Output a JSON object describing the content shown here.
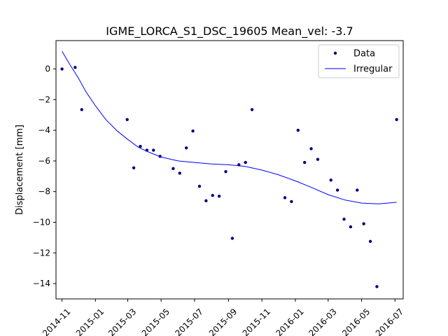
{
  "chart_data": {
    "type": "scatter",
    "title": "IGME_LORCA_S1_DSC_19605     Mean_vel: -3.7",
    "xlabel": "",
    "ylabel": "Displacement [mm]",
    "x_axis_type": "date",
    "xlim": [
      "2014-10-21",
      "2016-07-16"
    ],
    "ylim": [
      -15.0,
      1.85
    ],
    "x_ticks": [
      "2014-11-01",
      "2015-01-01",
      "2015-03-01",
      "2015-05-01",
      "2015-07-01",
      "2015-09-01",
      "2015-11-01",
      "2016-01-01",
      "2016-03-01",
      "2016-05-01",
      "2016-07-01"
    ],
    "x_tick_labels": [
      "2014-11",
      "2015-01",
      "2015-03",
      "2015-05",
      "2015-07",
      "2015-09",
      "2015-11",
      "2016-01",
      "2016-03",
      "2016-05",
      "2016-07"
    ],
    "y_ticks": [
      0,
      -2,
      -4,
      -6,
      -8,
      -10,
      -12,
      -14
    ],
    "y_tick_labels": [
      "0",
      "−2",
      "−4",
      "−6",
      "−8",
      "−10",
      "−12",
      "−14"
    ],
    "grid": false,
    "legend_position": "top-right",
    "series": [
      {
        "name": "Data",
        "kind": "points",
        "color": "#00007f",
        "points": [
          {
            "x": "2014-11-01",
            "y": 0.0
          },
          {
            "x": "2014-11-25",
            "y": 0.1
          },
          {
            "x": "2014-12-07",
            "y": -2.65
          },
          {
            "x": "2015-02-28",
            "y": -3.3
          },
          {
            "x": "2015-03-12",
            "y": -6.45
          },
          {
            "x": "2015-03-24",
            "y": -5.05
          },
          {
            "x": "2015-04-05",
            "y": -5.3
          },
          {
            "x": "2015-04-17",
            "y": -5.3
          },
          {
            "x": "2015-04-29",
            "y": -5.7
          },
          {
            "x": "2015-05-23",
            "y": -6.5
          },
          {
            "x": "2015-06-04",
            "y": -6.8
          },
          {
            "x": "2015-06-16",
            "y": -5.15
          },
          {
            "x": "2015-06-28",
            "y": -4.05
          },
          {
            "x": "2015-07-10",
            "y": -7.65
          },
          {
            "x": "2015-07-22",
            "y": -8.6
          },
          {
            "x": "2015-08-03",
            "y": -8.25
          },
          {
            "x": "2015-08-15",
            "y": -8.3
          },
          {
            "x": "2015-08-27",
            "y": -6.7
          },
          {
            "x": "2015-09-08",
            "y": -11.05
          },
          {
            "x": "2015-09-20",
            "y": -6.25
          },
          {
            "x": "2015-10-02",
            "y": -6.1
          },
          {
            "x": "2015-10-14",
            "y": -2.65
          },
          {
            "x": "2015-12-13",
            "y": -8.4
          },
          {
            "x": "2015-12-25",
            "y": -8.65
          },
          {
            "x": "2016-01-06",
            "y": -4.0
          },
          {
            "x": "2016-01-18",
            "y": -6.1
          },
          {
            "x": "2016-01-30",
            "y": -5.2
          },
          {
            "x": "2016-02-11",
            "y": -5.9
          },
          {
            "x": "2016-03-06",
            "y": -7.25
          },
          {
            "x": "2016-03-18",
            "y": -7.9
          },
          {
            "x": "2016-03-30",
            "y": -9.8
          },
          {
            "x": "2016-04-11",
            "y": -10.3
          },
          {
            "x": "2016-04-23",
            "y": -7.9
          },
          {
            "x": "2016-05-05",
            "y": -10.1
          },
          {
            "x": "2016-05-17",
            "y": -11.25
          },
          {
            "x": "2016-05-29",
            "y": -14.2
          },
          {
            "x": "2016-07-04",
            "y": -3.3
          }
        ]
      },
      {
        "name": "Irregular",
        "kind": "line",
        "color": "#0000ff",
        "points": [
          {
            "x": "2014-11-01",
            "y": 1.15
          },
          {
            "x": "2014-11-15",
            "y": 0.3
          },
          {
            "x": "2014-12-01",
            "y": -0.6
          },
          {
            "x": "2014-12-15",
            "y": -1.5
          },
          {
            "x": "2015-01-01",
            "y": -2.4
          },
          {
            "x": "2015-01-20",
            "y": -3.3
          },
          {
            "x": "2015-02-10",
            "y": -4.05
          },
          {
            "x": "2015-03-01",
            "y": -4.6
          },
          {
            "x": "2015-03-20",
            "y": -5.1
          },
          {
            "x": "2015-04-10",
            "y": -5.45
          },
          {
            "x": "2015-05-01",
            "y": -5.75
          },
          {
            "x": "2015-06-01",
            "y": -6.0
          },
          {
            "x": "2015-07-01",
            "y": -6.1
          },
          {
            "x": "2015-08-01",
            "y": -6.2
          },
          {
            "x": "2015-09-01",
            "y": -6.25
          },
          {
            "x": "2015-10-01",
            "y": -6.35
          },
          {
            "x": "2015-11-01",
            "y": -6.6
          },
          {
            "x": "2015-12-01",
            "y": -6.9
          },
          {
            "x": "2016-01-01",
            "y": -7.3
          },
          {
            "x": "2016-02-01",
            "y": -7.75
          },
          {
            "x": "2016-03-01",
            "y": -8.2
          },
          {
            "x": "2016-04-01",
            "y": -8.55
          },
          {
            "x": "2016-05-01",
            "y": -8.75
          },
          {
            "x": "2016-06-01",
            "y": -8.8
          },
          {
            "x": "2016-07-04",
            "y": -8.7
          }
        ]
      }
    ]
  }
}
